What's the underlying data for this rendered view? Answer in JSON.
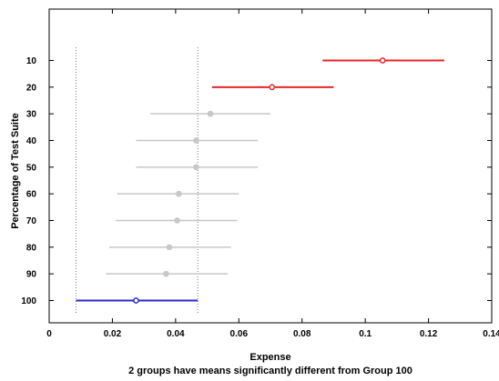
{
  "chart_data": {
    "type": "scatter",
    "subtype": "multiple-comparison-intervals",
    "title": "",
    "xlabel": "Expense",
    "ylabel": "Percentage of Test Suite",
    "caption": "2 groups have means significantly different from Group 100",
    "xlim": [
      0,
      0.14
    ],
    "x_ticks": [
      "0",
      "0.02",
      "0.04",
      "0.06",
      "0.08",
      "0.1",
      "0.12",
      "0.14"
    ],
    "x_tick_values": [
      0,
      0.02,
      0.04,
      0.06,
      0.08,
      0.1,
      0.12,
      0.14
    ],
    "categories": [
      "10",
      "20",
      "30",
      "40",
      "50",
      "60",
      "70",
      "80",
      "90",
      "100"
    ],
    "groups": [
      {
        "label": "10",
        "mean": 0.1055,
        "low": 0.0865,
        "high": 0.125,
        "color": "#e8262a"
      },
      {
        "label": "20",
        "mean": 0.0705,
        "low": 0.0515,
        "high": 0.09,
        "color": "#e8262a"
      },
      {
        "label": "30",
        "mean": 0.051,
        "low": 0.032,
        "high": 0.07,
        "color": "#c8c8c8"
      },
      {
        "label": "40",
        "mean": 0.0465,
        "low": 0.0275,
        "high": 0.066,
        "color": "#c8c8c8"
      },
      {
        "label": "50",
        "mean": 0.0465,
        "low": 0.0275,
        "high": 0.066,
        "color": "#c8c8c8"
      },
      {
        "label": "60",
        "mean": 0.041,
        "low": 0.0215,
        "high": 0.06,
        "color": "#c8c8c8"
      },
      {
        "label": "70",
        "mean": 0.0405,
        "low": 0.021,
        "high": 0.0595,
        "color": "#c8c8c8"
      },
      {
        "label": "80",
        "mean": 0.038,
        "low": 0.019,
        "high": 0.0575,
        "color": "#c8c8c8"
      },
      {
        "label": "90",
        "mean": 0.037,
        "low": 0.018,
        "high": 0.0565,
        "color": "#c8c8c8"
      },
      {
        "label": "100",
        "mean": 0.0275,
        "low": 0.0085,
        "high": 0.047,
        "color": "#2a2ac8"
      }
    ],
    "reference_lines": [
      0.0085,
      0.047
    ],
    "grid": false
  }
}
